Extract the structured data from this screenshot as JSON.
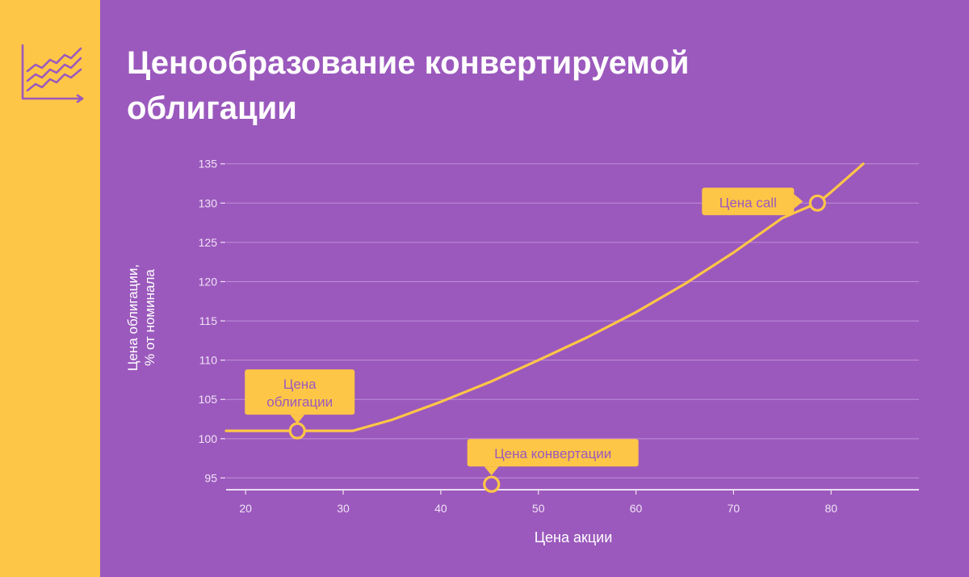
{
  "header": {
    "title_line1": "Ценообразование конвертируемой",
    "title_line2": "облигации",
    "icon": "line-chart-icon"
  },
  "colors": {
    "background": "#9b59bd",
    "side_strip": "#fdc646",
    "curve": "#fdc646",
    "grid": "#c08fd8",
    "text": "#ffffff"
  },
  "chart_data": {
    "type": "line",
    "xlabel": "Цена акции",
    "ylabel": "Цена облигации,\n% от номинала",
    "xlim": [
      18,
      89
    ],
    "ylim": [
      93.5,
      136
    ],
    "xticks": [
      20,
      30,
      40,
      50,
      60,
      70,
      80
    ],
    "yticks": [
      95,
      100,
      105,
      110,
      115,
      120,
      125,
      130,
      135
    ],
    "grid": true,
    "series": [
      {
        "x": [
          18,
          20,
          25,
          30,
          31,
          35,
          40,
          45,
          50,
          55,
          60,
          65,
          70,
          75,
          78.6,
          80,
          83.3
        ],
        "y": [
          101,
          101,
          101,
          101,
          101,
          102.4,
          104.7,
          107.2,
          110,
          112.9,
          116.1,
          119.7,
          123.7,
          128.1,
          130,
          131.4,
          135
        ]
      }
    ],
    "annotations": [
      {
        "label": "Цена облигации",
        "lines": [
          "Цена",
          "облигации"
        ],
        "x": 25.3,
        "y": 101
      },
      {
        "label": "Цена конвертации",
        "lines": [
          "Цена конвертации"
        ],
        "x": 45.2,
        "y": 94.2
      },
      {
        "label": "Цена call",
        "lines": [
          "Цена call"
        ],
        "x": 78.6,
        "y": 130
      }
    ]
  }
}
